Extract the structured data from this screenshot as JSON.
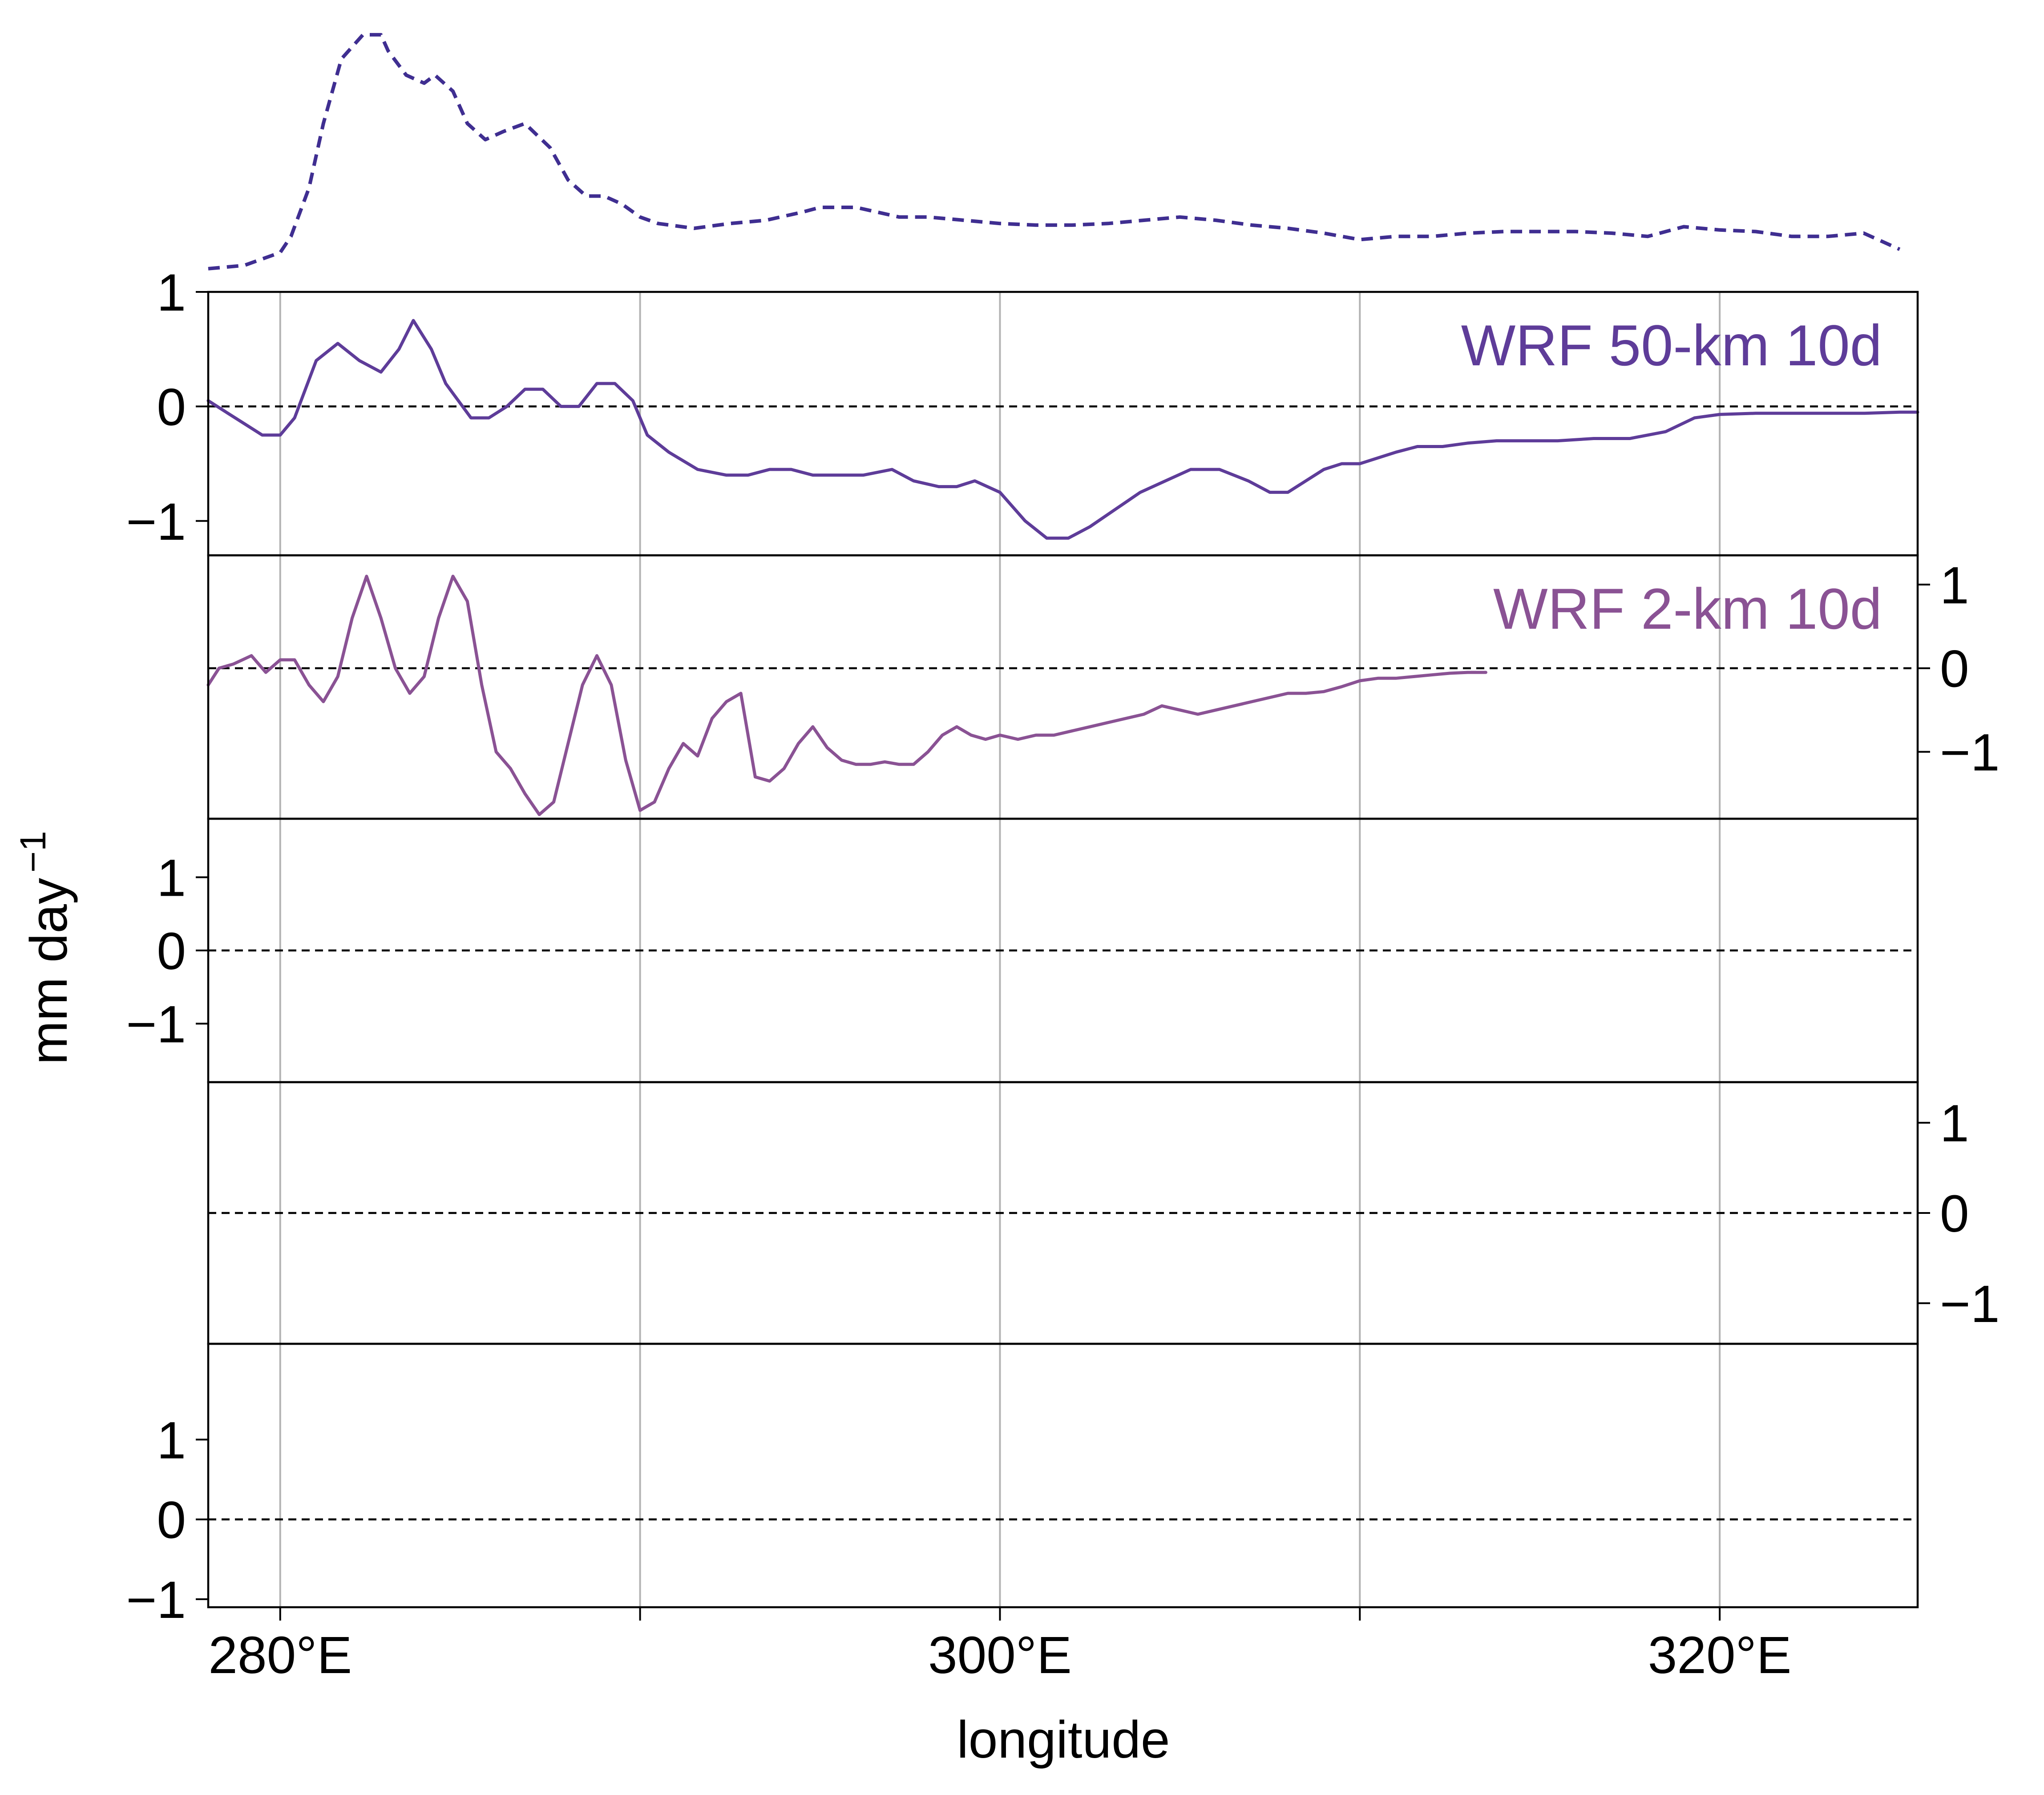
{
  "chart_data": {
    "type": "line",
    "xlabel": "longitude",
    "ylabel": "mm day",
    "ylabel_superscript": "−1",
    "xlim": [
      278,
      325.5
    ],
    "x_ticks": [
      280,
      290,
      300,
      310,
      320
    ],
    "x_tick_labels": [
      "280°E",
      "",
      "300°E",
      "",
      "320°E"
    ],
    "grid": "vertical",
    "colors": {
      "wrf50": "#5e3c99",
      "wrf2": "#8a5294",
      "reference": "#3f2e91",
      "zero_line": "#000000",
      "grid": "#b3b3b3"
    },
    "top_profile": {
      "style": "dashed",
      "color": "#3f2e91",
      "x": [
        278,
        279,
        280,
        280.3,
        280.8,
        281.2,
        281.7,
        282.3,
        282.8,
        283,
        283.5,
        284,
        284.3,
        284.8,
        285.2,
        285.7,
        286.2,
        286.8,
        287.5,
        288,
        288.5,
        289,
        289.5,
        290,
        290.5,
        291.5,
        292.5,
        293.5,
        294.5,
        295,
        296,
        297.2,
        298,
        299,
        300,
        301,
        302,
        303,
        304,
        305,
        306,
        307,
        308,
        309,
        310,
        311,
        312,
        313,
        314,
        315,
        316,
        317,
        318,
        319,
        320,
        321,
        322,
        323,
        324,
        325
      ],
      "y": [
        0.1,
        0.12,
        0.2,
        0.3,
        0.6,
        1.0,
        1.4,
        1.55,
        1.55,
        1.45,
        1.3,
        1.25,
        1.3,
        1.2,
        1.0,
        0.9,
        0.95,
        1.0,
        0.85,
        0.65,
        0.55,
        0.55,
        0.5,
        0.42,
        0.38,
        0.35,
        0.38,
        0.4,
        0.45,
        0.48,
        0.48,
        0.42,
        0.42,
        0.4,
        0.38,
        0.37,
        0.37,
        0.38,
        0.4,
        0.42,
        0.4,
        0.37,
        0.35,
        0.32,
        0.28,
        0.3,
        0.3,
        0.32,
        0.33,
        0.33,
        0.33,
        0.32,
        0.3,
        0.36,
        0.34,
        0.33,
        0.3,
        0.3,
        0.32,
        0.22
      ]
    },
    "panels": [
      {
        "label": "WRF 50-km 10d",
        "label_color": "#5e3c99",
        "ylim": [
          -1.3,
          1.0
        ],
        "y_ticks": [
          -1,
          0,
          1
        ],
        "y_tick_labels": [
          "−1",
          "0",
          "1"
        ],
        "y_axis_side": "left",
        "zero_line": true,
        "series": [
          {
            "color": "#5e3c99",
            "x": [
              278,
              278.5,
              279,
              279.5,
              280,
              280.4,
              281,
              281.6,
              282.2,
              282.8,
              283.3,
              283.7,
              284.2,
              284.6,
              285.3,
              285.8,
              286.3,
              286.8,
              287.3,
              287.8,
              288.3,
              288.8,
              289.3,
              289.8,
              290.2,
              290.8,
              291.6,
              292.4,
              293,
              293.6,
              294.2,
              294.8,
              295.4,
              296.2,
              297,
              297.6,
              298.3,
              298.8,
              299.3,
              300,
              300.7,
              301.3,
              301.9,
              302.5,
              303.2,
              303.9,
              304.6,
              305.3,
              306.1,
              306.9,
              307.5,
              308,
              308.5,
              309,
              309.5,
              310,
              310.5,
              311,
              311.6,
              312.3,
              313,
              313.8,
              314.5,
              315.5,
              316.5,
              317.5,
              318.5,
              319.3,
              320,
              321,
              322,
              323,
              324,
              325,
              325.5
            ],
            "y": [
              0.05,
              -0.05,
              -0.15,
              -0.25,
              -0.25,
              -0.1,
              0.4,
              0.55,
              0.4,
              0.3,
              0.5,
              0.75,
              0.5,
              0.2,
              -0.1,
              -0.1,
              0.0,
              0.15,
              0.15,
              0.0,
              0.0,
              0.2,
              0.2,
              0.05,
              -0.25,
              -0.4,
              -0.55,
              -0.6,
              -0.6,
              -0.55,
              -0.55,
              -0.6,
              -0.6,
              -0.6,
              -0.55,
              -0.65,
              -0.7,
              -0.7,
              -0.65,
              -0.75,
              -1.0,
              -1.15,
              -1.15,
              -1.05,
              -0.9,
              -0.75,
              -0.65,
              -0.55,
              -0.55,
              -0.65,
              -0.75,
              -0.75,
              -0.65,
              -0.55,
              -0.5,
              -0.5,
              -0.45,
              -0.4,
              -0.35,
              -0.35,
              -0.32,
              -0.3,
              -0.3,
              -0.3,
              -0.28,
              -0.28,
              -0.22,
              -0.1,
              -0.07,
              -0.06,
              -0.06,
              -0.06,
              -0.06,
              -0.05,
              -0.05
            ]
          }
        ]
      },
      {
        "label": "WRF 2-km 10d",
        "label_color": "#8a5294",
        "ylim": [
          -1.8,
          1.35
        ],
        "y_ticks": [
          -1,
          0,
          1
        ],
        "y_tick_labels": [
          "−1",
          "0",
          "1"
        ],
        "y_axis_side": "right",
        "zero_line": true,
        "series": [
          {
            "color": "#8a5294",
            "x": [
              278,
              278.3,
              278.7,
              279.2,
              279.6,
              280,
              280.4,
              280.8,
              281.2,
              281.6,
              282,
              282.4,
              282.8,
              283.2,
              283.6,
              284,
              284.4,
              284.8,
              285.2,
              285.6,
              286,
              286.4,
              286.8,
              287.2,
              287.6,
              288,
              288.4,
              288.8,
              289.2,
              289.6,
              290,
              290.4,
              290.8,
              291.2,
              291.6,
              292,
              292.4,
              292.8,
              293.2,
              293.6,
              294,
              294.4,
              294.8,
              295.2,
              295.6,
              296,
              296.4,
              296.8,
              297.2,
              297.6,
              298,
              298.4,
              298.8,
              299.2,
              299.6,
              300,
              300.5,
              301,
              301.5,
              302,
              302.5,
              303,
              303.5,
              304,
              304.5,
              305,
              305.5,
              306,
              306.5,
              307,
              307.5,
              308,
              308.5,
              309,
              309.5,
              310,
              310.5,
              311,
              311.5,
              312,
              312.5,
              313,
              313.5
            ],
            "y": [
              -0.2,
              0.0,
              0.05,
              0.15,
              -0.05,
              0.1,
              0.1,
              -0.2,
              -0.4,
              -0.1,
              0.6,
              1.1,
              0.6,
              0.0,
              -0.3,
              -0.1,
              0.6,
              1.1,
              0.8,
              -0.2,
              -1.0,
              -1.2,
              -1.5,
              -1.75,
              -1.6,
              -0.9,
              -0.2,
              0.15,
              -0.2,
              -1.1,
              -1.7,
              -1.6,
              -1.2,
              -0.9,
              -1.05,
              -0.6,
              -0.4,
              -0.3,
              -1.3,
              -1.35,
              -1.2,
              -0.9,
              -0.7,
              -0.95,
              -1.1,
              -1.15,
              -1.15,
              -1.12,
              -1.15,
              -1.15,
              -1.0,
              -0.8,
              -0.7,
              -0.8,
              -0.85,
              -0.8,
              -0.85,
              -0.8,
              -0.8,
              -0.75,
              -0.7,
              -0.65,
              -0.6,
              -0.55,
              -0.45,
              -0.5,
              -0.55,
              -0.5,
              -0.45,
              -0.4,
              -0.35,
              -0.3,
              -0.3,
              -0.28,
              -0.22,
              -0.15,
              -0.12,
              -0.12,
              -0.1,
              -0.08,
              -0.06,
              -0.05,
              -0.05
            ]
          }
        ]
      },
      {
        "label": "",
        "ylim": [
          -1.8,
          1.8
        ],
        "y_ticks": [
          -1,
          0,
          1
        ],
        "y_tick_labels": [
          "−1",
          "0",
          "1"
        ],
        "y_axis_side": "left",
        "zero_line": true,
        "series": []
      },
      {
        "label": "",
        "ylim": [
          -1.45,
          1.45
        ],
        "y_ticks": [
          -1,
          0,
          1
        ],
        "y_tick_labels": [
          "−1",
          "0",
          "1"
        ],
        "y_axis_side": "right",
        "zero_line": true,
        "series": []
      },
      {
        "label": "",
        "ylim": [
          -1.1,
          2.2
        ],
        "y_ticks": [
          -1,
          0,
          1
        ],
        "y_tick_labels": [
          "−1",
          "0",
          "1"
        ],
        "y_axis_side": "left",
        "zero_line": true,
        "series": []
      }
    ]
  }
}
